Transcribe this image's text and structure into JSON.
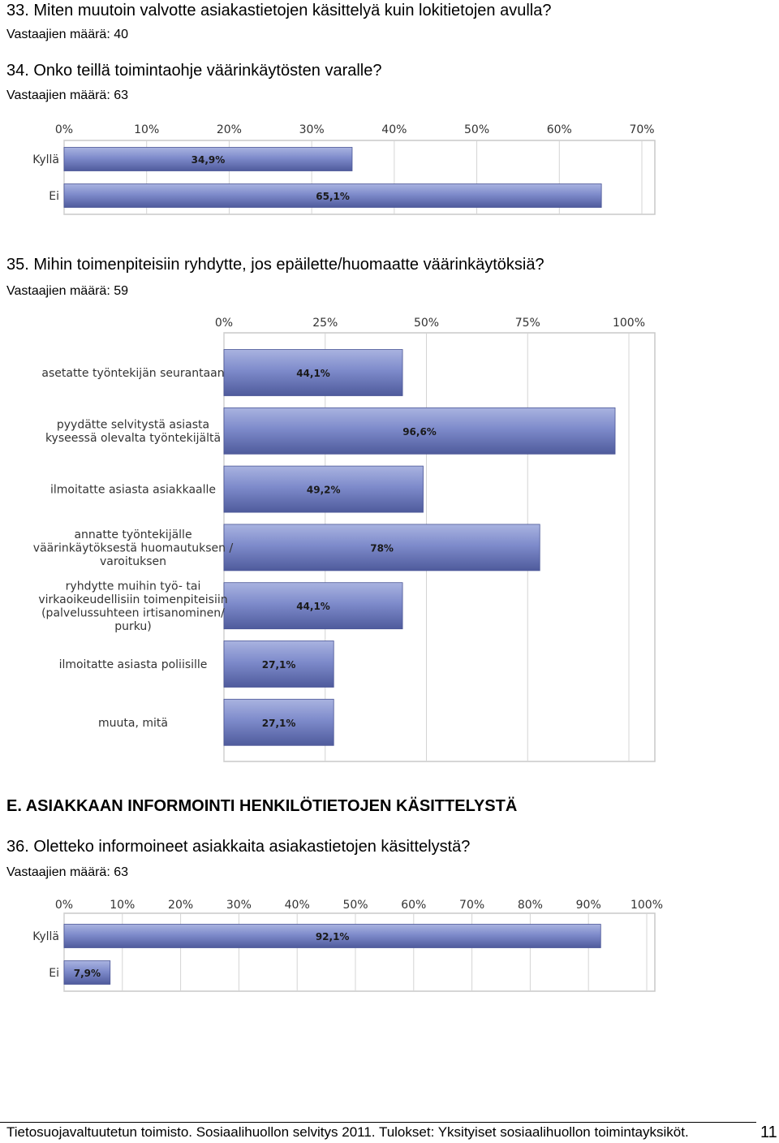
{
  "questions": {
    "q33": {
      "title": "33. Miten muutoin valvotte asiakastietojen käsittelyä kuin lokitietojen avulla?",
      "respondents": "Vastaajien määrä: 40"
    },
    "q34": {
      "title": "34. Onko teillä toimintaohje väärinkäytösten varalle?",
      "respondents": "Vastaajien määrä: 63"
    },
    "q35": {
      "title": "35. Mihin toimenpiteisiin ryhdytte, jos epäilette/huomaatte väärinkäytöksiä?",
      "respondents": "Vastaajien määrä: 59"
    },
    "q36": {
      "title": "36. Oletteko informoineet asiakkaita asiakastietojen käsittelystä?",
      "respondents": "Vastaajien määrä: 63"
    }
  },
  "section_e": {
    "heading": "E. ASIAKKAAN INFORMOINTI HENKILÖTIETOJEN KÄSITTELYSTÄ"
  },
  "footer": {
    "text": "Tietosuojavaltuutetun toimisto. Sosiaalihuollon selvitys 2011. Tulokset: Yksityiset sosiaalihuollon toimintayksiköt.",
    "page_number": "11"
  },
  "colors": {
    "bar": "#7e8bcb",
    "bar_dark": "#4f5b9c",
    "grid": "#d4d4d4",
    "frame": "#c8c8c8"
  },
  "chart_data": [
    {
      "type": "bar",
      "orientation": "horizontal",
      "categories": [
        "Kyllä",
        "Ei"
      ],
      "values": [
        34.9,
        65.1
      ],
      "value_labels": [
        "34,9%",
        "65,1%"
      ],
      "ticks": [
        "0%",
        "10%",
        "20%",
        "30%",
        "40%",
        "50%",
        "60%",
        "70%"
      ],
      "xlim": [
        0,
        70
      ],
      "grid": true
    },
    {
      "type": "bar",
      "orientation": "horizontal",
      "categories": [
        [
          "asetatte työntekijän seurantaan"
        ],
        [
          "pyydätte selvitystä asiasta",
          "kyseessä olevalta työntekijältä"
        ],
        [
          "ilmoitatte asiasta asiakkaalle"
        ],
        [
          "annatte työntekijälle",
          "väärinkäytöksestä huomautuksen /",
          "varoituksen"
        ],
        [
          "ryhdytte muihin työ- tai",
          "virkaoikeudellisiin toimenpiteisiin",
          "(palvelussuhteen irtisanominen/",
          "purku)"
        ],
        [
          "ilmoitatte asiasta poliisille"
        ],
        [
          "muuta, mitä"
        ]
      ],
      "values": [
        44.1,
        96.6,
        49.2,
        78,
        44.1,
        27.1,
        27.1
      ],
      "value_labels": [
        "44,1%",
        "96,6%",
        "49,2%",
        "78%",
        "44,1%",
        "27,1%",
        "27,1%"
      ],
      "ticks": [
        "0%",
        "25%",
        "50%",
        "75%",
        "100%"
      ],
      "xlim": [
        0,
        100
      ],
      "grid": true
    },
    {
      "type": "bar",
      "orientation": "horizontal",
      "categories": [
        "Kyllä",
        "Ei"
      ],
      "values": [
        92.1,
        7.9
      ],
      "value_labels": [
        "92,1%",
        "7,9%"
      ],
      "ticks": [
        "0%",
        "10%",
        "20%",
        "30%",
        "40%",
        "50%",
        "60%",
        "70%",
        "80%",
        "90%",
        "100%"
      ],
      "xlim": [
        0,
        100
      ],
      "grid": true
    }
  ]
}
